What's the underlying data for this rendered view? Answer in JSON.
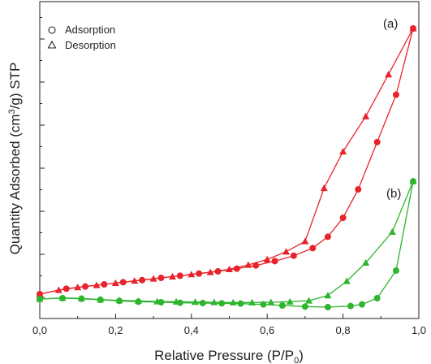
{
  "chart_data": {
    "type": "scatter",
    "xlabel": "Relative Pressure (P/P",
    "xlabel_sub": "0",
    "xlabel_close": ")",
    "ylabel": "Quantity Adsorbed (cm",
    "ylabel_sup": "3",
    "ylabel_rest": "/g) STP",
    "xlim": [
      0.0,
      1.0
    ],
    "xticks": [
      "0,0",
      "0,2",
      "0,4",
      "0,6",
      "0,8",
      "1,0"
    ],
    "xtick_values": [
      0.0,
      0.2,
      0.4,
      0.6,
      0.8,
      1.0
    ],
    "yaxis_scale": "relative (no tick labels printed)",
    "ylim": [
      0,
      100
    ],
    "grid": false,
    "legend_position": "top-left",
    "legend": [
      {
        "marker": "circle-open",
        "label": "Adsorption"
      },
      {
        "marker": "triangle-open",
        "label": "Desorption"
      }
    ],
    "panel_labels": [
      {
        "text": "(a)",
        "series_color": "#e8232a"
      },
      {
        "text": "(b)",
        "series_color": "#2db52d"
      }
    ],
    "series": [
      {
        "sample": "a",
        "kind": "adsorption",
        "marker": "circle",
        "color": "#e8232a",
        "points": [
          [
            0.0,
            1.8
          ],
          [
            0.07,
            3.8
          ],
          [
            0.12,
            4.6
          ],
          [
            0.17,
            5.4
          ],
          [
            0.22,
            6.2
          ],
          [
            0.27,
            7.0
          ],
          [
            0.32,
            7.8
          ],
          [
            0.37,
            8.6
          ],
          [
            0.42,
            9.4
          ],
          [
            0.47,
            10.2
          ],
          [
            0.52,
            11.2
          ],
          [
            0.57,
            12.4
          ],
          [
            0.62,
            14.0
          ],
          [
            0.67,
            16.0
          ],
          [
            0.72,
            18.8
          ],
          [
            0.76,
            23.0
          ],
          [
            0.8,
            30.0
          ],
          [
            0.84,
            40.5
          ],
          [
            0.89,
            58.0
          ],
          [
            0.94,
            75.5
          ],
          [
            0.985,
            100.0
          ]
        ]
      },
      {
        "sample": "a",
        "kind": "desorption",
        "marker": "triangle",
        "color": "#e8232a",
        "points": [
          [
            0.0,
            1.8
          ],
          [
            0.05,
            3.3
          ],
          [
            0.1,
            4.3
          ],
          [
            0.15,
            5.1
          ],
          [
            0.2,
            5.9
          ],
          [
            0.25,
            6.7
          ],
          [
            0.3,
            7.5
          ],
          [
            0.35,
            8.3
          ],
          [
            0.4,
            9.1
          ],
          [
            0.45,
            9.9
          ],
          [
            0.5,
            11.0
          ],
          [
            0.55,
            12.6
          ],
          [
            0.6,
            14.6
          ],
          [
            0.65,
            17.5
          ],
          [
            0.7,
            21.3
          ],
          [
            0.75,
            41.0
          ],
          [
            0.8,
            54.5
          ],
          [
            0.86,
            67.5
          ],
          [
            0.92,
            83.0
          ],
          [
            0.985,
            100.0
          ]
        ]
      },
      {
        "sample": "b",
        "kind": "adsorption",
        "marker": "circle",
        "color": "#2db52d",
        "points": [
          [
            0.0,
            0.0
          ],
          [
            0.06,
            0.3
          ],
          [
            0.11,
            0.1
          ],
          [
            0.16,
            -0.3
          ],
          [
            0.21,
            -0.7
          ],
          [
            0.26,
            -1.0
          ],
          [
            0.32,
            -1.2
          ],
          [
            0.37,
            -1.4
          ],
          [
            0.43,
            -1.5
          ],
          [
            0.48,
            -1.6
          ],
          [
            0.53,
            -1.7
          ],
          [
            0.59,
            -2.0
          ],
          [
            0.64,
            -2.4
          ],
          [
            0.7,
            -2.8
          ],
          [
            0.76,
            -3.0
          ],
          [
            0.82,
            -2.6
          ],
          [
            0.85,
            -2.0
          ],
          [
            0.89,
            0.3
          ],
          [
            0.94,
            10.5
          ],
          [
            0.985,
            43.5
          ]
        ]
      },
      {
        "sample": "b",
        "kind": "desorption",
        "marker": "triangle",
        "color": "#2db52d",
        "points": [
          [
            0.0,
            0.0
          ],
          [
            0.06,
            0.4
          ],
          [
            0.11,
            0.2
          ],
          [
            0.16,
            -0.2
          ],
          [
            0.21,
            -0.5
          ],
          [
            0.26,
            -0.7
          ],
          [
            0.31,
            -0.9
          ],
          [
            0.36,
            -1.0
          ],
          [
            0.41,
            -1.1
          ],
          [
            0.46,
            -1.2
          ],
          [
            0.51,
            -1.3
          ],
          [
            0.56,
            -1.3
          ],
          [
            0.61,
            -1.2
          ],
          [
            0.66,
            -1.0
          ],
          [
            0.71,
            -0.6
          ],
          [
            0.76,
            1.3
          ],
          [
            0.81,
            6.6
          ],
          [
            0.86,
            13.4
          ],
          [
            0.93,
            24.8
          ],
          [
            0.985,
            43.5
          ]
        ]
      }
    ]
  }
}
